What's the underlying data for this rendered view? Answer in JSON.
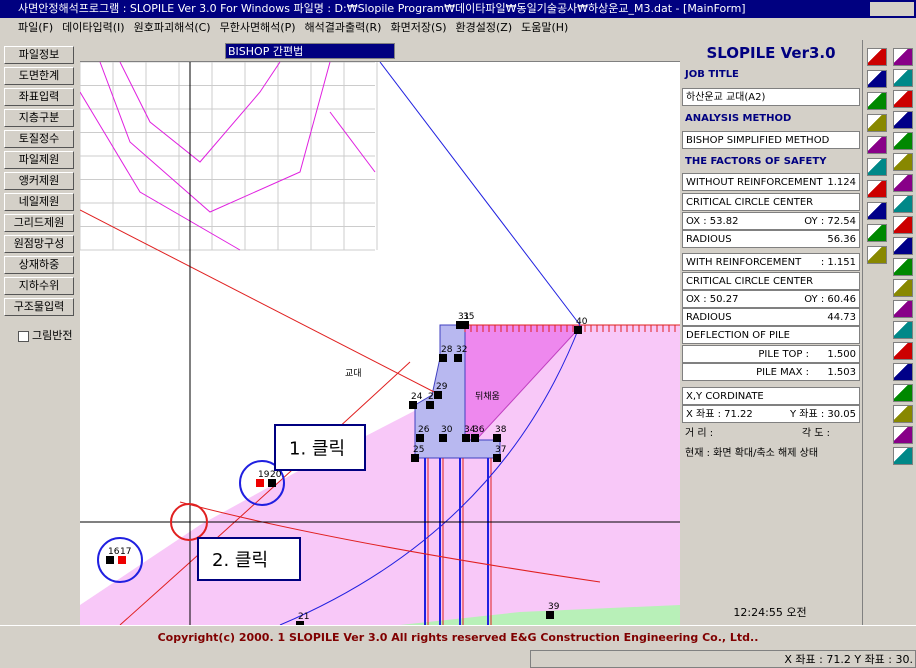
{
  "window": {
    "title": "사면안정해석프로그램 : SLOPILE Ver 3.0 For Windows 파일명 : D:₩Slopile Program₩데이타파일₩동일기술공사₩하상운교_M3.dat - [MainForm]"
  },
  "menu": [
    "파일(F)",
    "데이타입력(I)",
    "원호파괴해석(C)",
    "무한사면해석(P)",
    "해석결과출력(R)",
    "화면저장(S)",
    "환경설정(Z)",
    "도움말(H)"
  ],
  "sidebar": {
    "buttons": [
      "파일정보",
      "도면한계",
      "좌표입력",
      "지층구분",
      "토질정수",
      "파일제원",
      "앵커제원",
      "네일제원",
      "그리드제원",
      "원점망구성",
      "상재하중",
      "지하수위",
      "구조물입력"
    ],
    "checkbox": "그림반전"
  },
  "toolbar": {
    "method": "BISHOP 간편법"
  },
  "drawing": {
    "labels": [
      "교대",
      "뒤채움"
    ],
    "nodes": [
      "31",
      "35",
      "40",
      "28",
      "32",
      "29",
      "24",
      "27",
      "26",
      "30",
      "34",
      "36",
      "38",
      "25",
      "37",
      "19",
      "20",
      "16",
      "17",
      "21",
      "39"
    ],
    "callouts": [
      "1. 클릭",
      "2. 클릭"
    ]
  },
  "panel": {
    "title": "SLOPILE Ver3.0",
    "job_title_header": "JOB TITLE",
    "job_title": "하산운교 교대(A2)",
    "method_header": "ANALYSIS METHOD",
    "method": "BISHOP SIMPLIFIED METHOD",
    "factors_header": "THE FACTORS OF SAFETY",
    "without": {
      "label": "WITHOUT REINFORCEMENT",
      "value": "1.124",
      "center": "CRITICAL CIRCLE CENTER",
      "ox": "OX : 53.82",
      "oy": "OY : 72.54",
      "radius_label": "RADIOUS",
      "radius": "56.36"
    },
    "with": {
      "label": "WITH REINFORCEMENT",
      "value": ": 1.151",
      "center": "CRITICAL CIRCLE CENTER",
      "ox": "OX : 50.27",
      "oy": "OY : 60.46",
      "radius_label": "RADIOUS",
      "radius": "44.73"
    },
    "deflection": {
      "label": "DEFLECTION OF PILE",
      "top_label": "PILE TOP :",
      "top": "1.500",
      "max_label": "PILE MAX :",
      "max": "1.503"
    },
    "coord_header": "X,Y CORDINATE",
    "x": "X 좌표 :  71.22",
    "y": "Y 좌표 :  30.05",
    "distance": "거 리 :",
    "angle": "각 도 :",
    "status": "현재 : 화면 확대/축소 해제 상태",
    "clock": "12:24:55 오전"
  },
  "footer": {
    "copyright": "Copyright(c) 2000. 1 SLOPILE Ver 3.0 All rights reserved E&G Construction Engineering Co., Ltd..",
    "status": "X 좌표 :  71.2 Y 좌표 :  30."
  }
}
